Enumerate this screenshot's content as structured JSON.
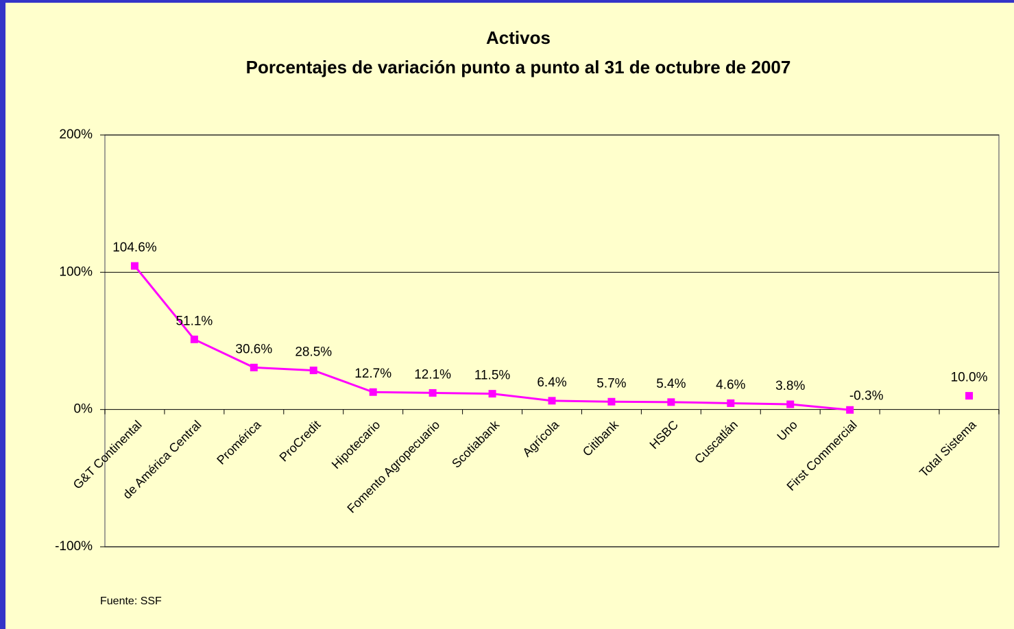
{
  "chart_data": {
    "type": "line",
    "title": "Activos",
    "subtitle": "Porcentajes de variación punto a punto al 31 de octubre de 2007",
    "categories": [
      "G&T Continental",
      "de América Central",
      "Promérica",
      "ProCredit",
      "Hipotecario",
      "Fomento Agropecuario",
      "Scotiabank",
      "Agrícola",
      "Citibank",
      "HSBC",
      "Cuscatlán",
      "Uno",
      "First Commercial",
      null,
      "Total Sistema"
    ],
    "series": [
      {
        "name": "Activos",
        "color": "#ff00ff",
        "values": [
          104.6,
          51.1,
          30.6,
          28.5,
          12.7,
          12.1,
          11.5,
          6.4,
          5.7,
          5.4,
          4.6,
          3.8,
          -0.3,
          null,
          10.0
        ],
        "value_labels": [
          "104.6%",
          "51.1%",
          "30.6%",
          "28.5%",
          "12.7%",
          "12.1%",
          "11.5%",
          "6.4%",
          "5.7%",
          "5.4%",
          "4.6%",
          "3.8%",
          "-0.3%",
          null,
          "10.0%"
        ]
      }
    ],
    "ylim": [
      -100,
      200
    ],
    "yticks": [
      {
        "value": -100,
        "label": "-100%"
      },
      {
        "value": 0,
        "label": "0%"
      },
      {
        "value": 100,
        "label": "100%"
      },
      {
        "value": 200,
        "label": "200%"
      }
    ],
    "grid": true,
    "note": "Fuente: SSF"
  }
}
